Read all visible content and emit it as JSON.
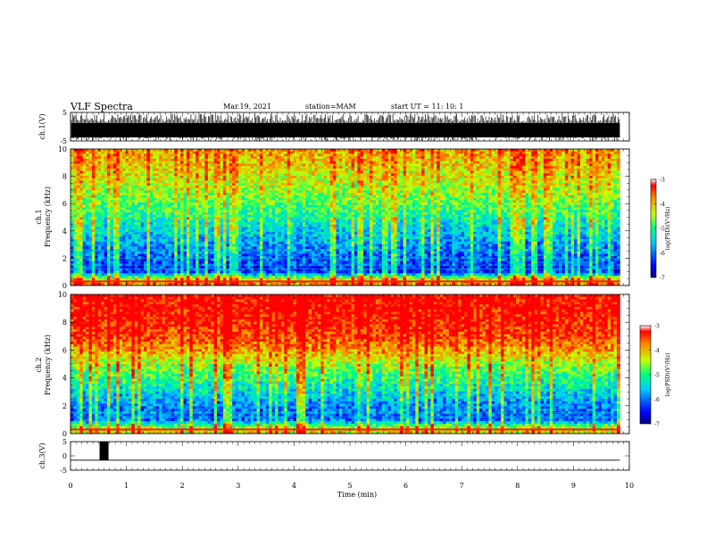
{
  "header": {
    "title": "VLF Spectra",
    "date": "Mar.19, 2021",
    "station": "station=MAM",
    "start_ut": "start  UT =   11: 10: 1"
  },
  "chart_data": {
    "type": "heatmap",
    "xlabel": "Time  (min)",
    "xlim": [
      0,
      10
    ],
    "xticks": [
      "0",
      "1",
      "2",
      "3",
      "4",
      "5",
      "6",
      "7",
      "8",
      "9",
      "10"
    ],
    "data_end_min": 9.83,
    "panels": [
      {
        "id": "ch1_waveform",
        "type": "line",
        "ylabel": "ch.1(V)",
        "ylim": [
          -5,
          5
        ],
        "yticks": [
          "5",
          "-5"
        ]
      },
      {
        "id": "ch1_spectrogram",
        "type": "heatmap",
        "ylabel_top": "ch.1",
        "ylabel": "Frequency  (kHz)",
        "ylim": [
          0,
          10
        ],
        "yticks": [
          "0",
          "2",
          "4",
          "6",
          "8",
          "10"
        ],
        "colorbar": {
          "label": "log(PSD)(V²/Hz)",
          "range": [
            -7,
            -3
          ],
          "ticks": [
            "-3",
            "-4",
            "-5",
            "-6",
            "-7"
          ]
        },
        "mean_log_psd_by_freq": [
          {
            "freq_khz": 0.3,
            "value": -3.8
          },
          {
            "freq_khz": 1,
            "value": -6.3
          },
          {
            "freq_khz": 2,
            "value": -6.1
          },
          {
            "freq_khz": 3,
            "value": -5.8
          },
          {
            "freq_khz": 4,
            "value": -5.5
          },
          {
            "freq_khz": 5,
            "value": -5.1
          },
          {
            "freq_khz": 6,
            "value": -4.8
          },
          {
            "freq_khz": 7,
            "value": -4.5
          },
          {
            "freq_khz": 8,
            "value": -4.3
          },
          {
            "freq_khz": 9,
            "value": -4.1
          },
          {
            "freq_khz": 10,
            "value": -3.9
          }
        ]
      },
      {
        "id": "ch2_spectrogram",
        "type": "heatmap",
        "ylabel_top": "ch.2",
        "ylabel": "Frequency  (kHz)",
        "ylim": [
          0,
          10
        ],
        "yticks": [
          "0",
          "2",
          "4",
          "6",
          "8",
          "10"
        ],
        "colorbar": {
          "label": "log(PSD)(V²/Hz)",
          "range": [
            -7,
            -3
          ],
          "ticks": [
            "-3",
            "-4",
            "-5",
            "-6",
            "-7"
          ]
        },
        "mean_log_psd_by_freq": [
          {
            "freq_khz": 0.3,
            "value": -4.2
          },
          {
            "freq_khz": 1,
            "value": -6.0
          },
          {
            "freq_khz": 2,
            "value": -5.9
          },
          {
            "freq_khz": 3,
            "value": -5.4
          },
          {
            "freq_khz": 4,
            "value": -5.0
          },
          {
            "freq_khz": 5,
            "value": -4.5
          },
          {
            "freq_khz": 6,
            "value": -3.9
          },
          {
            "freq_khz": 7,
            "value": -3.5
          },
          {
            "freq_khz": 8,
            "value": -3.3
          },
          {
            "freq_khz": 9,
            "value": -3.2
          },
          {
            "freq_khz": 10,
            "value": -3.2
          }
        ]
      },
      {
        "id": "ch3_waveform",
        "type": "line",
        "ylabel": "ch.3(V)",
        "ylim": [
          -5,
          5
        ],
        "yticks": [
          "5",
          "0",
          "-5"
        ],
        "baseline_v": -1.5,
        "pulse": {
          "start_min": 0.52,
          "end_min": 0.68,
          "low_v": -1.5,
          "high_v": 5
        }
      }
    ]
  }
}
